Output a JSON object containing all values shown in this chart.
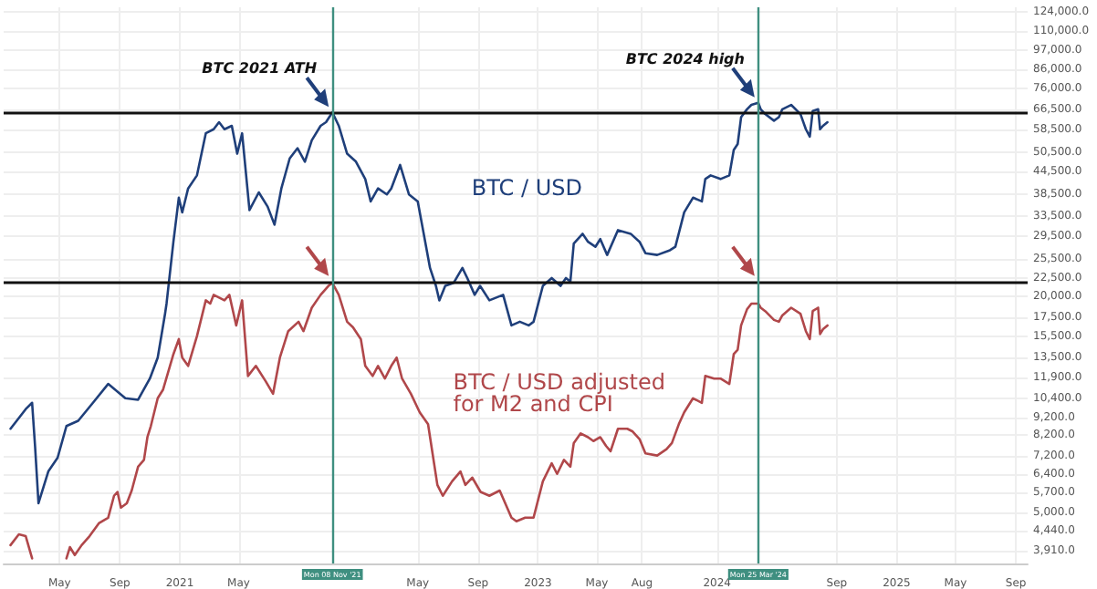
{
  "chart_data": {
    "type": "line",
    "log": true,
    "grid": true,
    "marker": "none",
    "line_style": "solid",
    "xlim": [
      "2020-01-08",
      "2025-09-25"
    ],
    "ylim": [
      3600,
      128000
    ],
    "xticks": [
      {
        "value": "2020-05-01",
        "label": "May"
      },
      {
        "value": "2020-09-01",
        "label": "Sep"
      },
      {
        "value": "2021-01-01",
        "label": "2021"
      },
      {
        "value": "2021-05-01",
        "label": "May"
      },
      {
        "value": "2022-05-01",
        "label": "May"
      },
      {
        "value": "2022-09-01",
        "label": "Sep"
      },
      {
        "value": "2023-01-01",
        "label": "2023"
      },
      {
        "value": "2023-05-01",
        "label": "May"
      },
      {
        "value": "2023-08-01",
        "label": "Aug"
      },
      {
        "value": "2024-01-01",
        "label": "2024"
      },
      {
        "value": "2024-09-01",
        "label": "Sep"
      },
      {
        "value": "2025-01-01",
        "label": "2025"
      },
      {
        "value": "2025-05-01",
        "label": "May"
      },
      {
        "value": "2025-09-01",
        "label": "Sep"
      }
    ],
    "yticks": [
      {
        "value": 3910,
        "label": "3,910.0"
      },
      {
        "value": 4440,
        "label": "4,440.0"
      },
      {
        "value": 5000,
        "label": "5,000.0"
      },
      {
        "value": 5700,
        "label": "5,700.0"
      },
      {
        "value": 6400,
        "label": "6,400.0"
      },
      {
        "value": 7200,
        "label": "7,200.0"
      },
      {
        "value": 8200,
        "label": "8,200.0"
      },
      {
        "value": 9200,
        "label": "9,200.0"
      },
      {
        "value": 10400,
        "label": "10,400.0"
      },
      {
        "value": 11900,
        "label": "11,900.0"
      },
      {
        "value": 13500,
        "label": "13,500.0"
      },
      {
        "value": 15500,
        "label": "15,500.0"
      },
      {
        "value": 17500,
        "label": "17,500.0"
      },
      {
        "value": 20000,
        "label": "20,000.0"
      },
      {
        "value": 22500,
        "label": "22,500.0"
      },
      {
        "value": 25500,
        "label": "25,500.0"
      },
      {
        "value": 29500,
        "label": "29,500.0"
      },
      {
        "value": 33500,
        "label": "33,500.0"
      },
      {
        "value": 38500,
        "label": "38,500.0"
      },
      {
        "value": 44500,
        "label": "44,500.0"
      },
      {
        "value": 50500,
        "label": "50,500.0"
      },
      {
        "value": 58500,
        "label": "58,500.0"
      },
      {
        "value": 66500,
        "label": "66,500.0"
      },
      {
        "value": 76000,
        "label": "76,000.0"
      },
      {
        "value": 86000,
        "label": "86,000.0"
      },
      {
        "value": 97000,
        "label": "97,000.0"
      },
      {
        "value": 110000,
        "label": "110,000.0"
      },
      {
        "value": 124000,
        "label": "124,000.0"
      }
    ],
    "series": [
      {
        "name": "BTC / USD",
        "color": "#1f3f7a",
        "x": [
          "2020-01-22",
          "2020-02-22",
          "2020-03-06",
          "2020-03-12",
          "2020-03-19",
          "2020-04-08",
          "2020-04-27",
          "2020-05-15",
          "2020-06-08",
          "2020-07-08",
          "2020-08-08",
          "2020-09-12",
          "2020-10-08",
          "2020-11-01",
          "2020-11-17",
          "2020-12-02",
          "2020-12-05",
          "2020-12-19",
          "2020-12-30",
          "2021-01-06",
          "2021-01-18",
          "2021-02-05",
          "2021-02-23",
          "2021-03-11",
          "2021-03-22",
          "2021-04-02",
          "2021-04-17",
          "2021-04-28",
          "2021-05-08",
          "2021-05-23",
          "2021-06-11",
          "2021-06-29",
          "2021-07-13",
          "2021-07-27",
          "2021-08-13",
          "2021-08-29",
          "2021-09-13",
          "2021-09-27",
          "2021-10-15",
          "2021-10-26",
          "2021-11-08",
          "2021-11-21",
          "2021-12-08",
          "2021-12-26",
          "2022-01-14",
          "2022-01-25",
          "2022-02-09",
          "2022-02-27",
          "2022-03-08",
          "2022-03-26",
          "2022-04-13",
          "2022-05-01",
          "2022-05-26",
          "2022-06-07",
          "2022-06-14",
          "2022-06-26",
          "2022-07-13",
          "2022-07-31",
          "2022-08-10",
          "2022-08-25",
          "2022-09-05",
          "2022-09-24",
          "2022-10-22",
          "2022-11-08",
          "2022-11-25",
          "2022-12-13",
          "2022-12-23",
          "2023-01-11",
          "2023-01-29",
          "2023-02-16",
          "2023-02-27",
          "2023-03-08",
          "2023-03-15",
          "2023-04-02",
          "2023-04-13",
          "2023-04-28",
          "2023-05-08",
          "2023-05-22",
          "2023-06-13",
          "2023-07-09",
          "2023-07-27",
          "2023-08-08",
          "2023-09-01",
          "2023-09-27",
          "2023-10-08",
          "2023-10-26",
          "2023-11-13",
          "2023-12-01",
          "2023-12-08",
          "2023-12-19",
          "2024-01-08",
          "2024-01-26",
          "2024-02-04",
          "2024-02-12",
          "2024-02-19",
          "2024-03-02",
          "2024-03-11",
          "2024-03-25",
          "2024-03-30",
          "2024-04-08",
          "2024-04-26",
          "2024-05-06",
          "2024-05-13",
          "2024-05-31",
          "2024-06-19",
          "2024-06-30",
          "2024-07-08",
          "2024-07-14",
          "2024-07-25",
          "2024-07-29",
          "2024-08-04",
          "2024-08-13"
        ],
        "values": [
          8550,
          9700,
          10100,
          7650,
          5300,
          6500,
          7100,
          8700,
          9000,
          10100,
          11400,
          10400,
          10300,
          11800,
          13500,
          17900,
          19100,
          28400,
          37700,
          34300,
          40000,
          43500,
          57000,
          58500,
          61200,
          58500,
          59800,
          50000,
          57000,
          34800,
          39000,
          35600,
          31700,
          40000,
          48500,
          51800,
          47500,
          54500,
          59800,
          61200,
          65200,
          59800,
          50000,
          47500,
          42500,
          36800,
          40000,
          38500,
          40000,
          46500,
          38500,
          36800,
          24000,
          21400,
          19500,
          21400,
          21800,
          24000,
          22500,
          20200,
          21400,
          19500,
          20200,
          16600,
          17000,
          16600,
          17000,
          21400,
          22500,
          21400,
          22500,
          22000,
          28100,
          29900,
          28400,
          27500,
          28900,
          26100,
          30600,
          29900,
          28400,
          26400,
          26100,
          26900,
          27500,
          34300,
          37700,
          36800,
          42500,
          43500,
          42500,
          43500,
          51200,
          53200,
          63200,
          66500,
          68400,
          69300,
          66500,
          64500,
          61800,
          63200,
          66500,
          68400,
          64500,
          58500,
          55800,
          65800,
          66500,
          58500,
          59800,
          61200
        ]
      },
      {
        "name": "BTC / USD adjusted\nfor M2 and CPI",
        "color": "#b0474a",
        "x": [
          "2020-01-22",
          "2020-02-08",
          "2020-02-22",
          "2020-03-06",
          "2020-03-19",
          "2020-04-27",
          "2020-05-15",
          "2020-05-22",
          "2020-06-01",
          "2020-06-15",
          "2020-07-01",
          "2020-07-20",
          "2020-08-08",
          "2020-08-20",
          "2020-08-27",
          "2020-09-03",
          "2020-09-15",
          "2020-09-25",
          "2020-10-08",
          "2020-10-20",
          "2020-10-27",
          "2020-11-03",
          "2020-11-17",
          "2020-11-28",
          "2020-12-19",
          "2020-12-30",
          "2021-01-06",
          "2021-01-18",
          "2021-02-05",
          "2021-02-23",
          "2021-03-04",
          "2021-03-11",
          "2021-04-02",
          "2021-04-12",
          "2021-04-26",
          "2021-05-08",
          "2021-05-20",
          "2021-06-05",
          "2021-06-25",
          "2021-07-10",
          "2021-07-24",
          "2021-08-10",
          "2021-08-31",
          "2021-09-10",
          "2021-09-27",
          "2021-10-15",
          "2021-10-31",
          "2021-11-08",
          "2021-11-21",
          "2021-12-08",
          "2021-12-20",
          "2022-01-05",
          "2022-01-14",
          "2022-01-29",
          "2022-02-09",
          "2022-02-23",
          "2022-03-08",
          "2022-03-19",
          "2022-03-30",
          "2022-04-17",
          "2022-05-05",
          "2022-05-22",
          "2022-06-10",
          "2022-06-21",
          "2022-07-10",
          "2022-07-27",
          "2022-08-06",
          "2022-08-20",
          "2022-09-06",
          "2022-09-24",
          "2022-10-15",
          "2022-11-08",
          "2022-11-18",
          "2022-12-06",
          "2022-12-23",
          "2023-01-11",
          "2023-01-29",
          "2023-02-09",
          "2023-02-23",
          "2023-03-08",
          "2023-03-15",
          "2023-03-29",
          "2023-04-13",
          "2023-04-24",
          "2023-05-08",
          "2023-05-20",
          "2023-05-29",
          "2023-06-13",
          "2023-07-02",
          "2023-07-13",
          "2023-07-27",
          "2023-08-08",
          "2023-09-01",
          "2023-09-20",
          "2023-10-01",
          "2023-10-15",
          "2023-10-26",
          "2023-11-13",
          "2023-12-01",
          "2023-12-08",
          "2023-12-26",
          "2024-01-08",
          "2024-01-26",
          "2024-02-04",
          "2024-02-12",
          "2024-02-19",
          "2024-03-02",
          "2024-03-11",
          "2024-03-25",
          "2024-03-30",
          "2024-04-08",
          "2024-04-26",
          "2024-05-06",
          "2024-05-13",
          "2024-05-31",
          "2024-06-19",
          "2024-06-30",
          "2024-07-08",
          "2024-07-14",
          "2024-07-25",
          "2024-07-29",
          "2024-08-04",
          "2024-08-13"
        ],
        "values": [
          4050,
          4340,
          4290,
          3720,
          null,
          null,
          3720,
          4000,
          3800,
          4050,
          4290,
          4660,
          4830,
          5560,
          5700,
          5150,
          5300,
          5750,
          6700,
          7000,
          8100,
          8700,
          10400,
          11000,
          13800,
          15200,
          13500,
          12800,
          15500,
          19500,
          19100,
          20200,
          19500,
          20200,
          16600,
          19500,
          12000,
          12800,
          11600,
          10700,
          13500,
          16000,
          17000,
          16000,
          18600,
          20200,
          21400,
          21800,
          20200,
          17000,
          16400,
          15200,
          12800,
          12000,
          12800,
          11800,
          12800,
          13500,
          11800,
          10700,
          9500,
          8800,
          5960,
          5560,
          6100,
          6500,
          5960,
          6250,
          5700,
          5560,
          5750,
          4830,
          4720,
          4830,
          4830,
          6100,
          6850,
          6400,
          7000,
          6700,
          7800,
          8300,
          8100,
          7900,
          8100,
          7650,
          7400,
          8550,
          8550,
          8400,
          8000,
          7300,
          7200,
          7500,
          7800,
          8800,
          9500,
          10400,
          10100,
          12000,
          11800,
          11800,
          11400,
          13800,
          14200,
          16600,
          18400,
          19100,
          19100,
          18600,
          18200,
          17200,
          17000,
          17700,
          18600,
          17900,
          16000,
          15200,
          18200,
          18600,
          15700,
          16200,
          16600
        ]
      }
    ],
    "ref_lines": [
      {
        "axis": "y",
        "value": 65200,
        "color": "#111111"
      },
      {
        "axis": "y",
        "value": 22000,
        "color": "#111111"
      },
      {
        "axis": "x",
        "value": "2021-11-08",
        "label": "Mon 08 Nov '21",
        "color": "#3f8f80"
      },
      {
        "axis": "x",
        "value": "2024-03-25",
        "label": "Mon 25 Mar '24",
        "color": "#3f8f80"
      }
    ],
    "annotations": [
      {
        "text": "BTC 2021 ATH",
        "x": "2021-11-08",
        "y": 65200
      },
      {
        "text": "BTC 2024 high",
        "x": "2024-03-25",
        "y": 69300
      }
    ]
  }
}
